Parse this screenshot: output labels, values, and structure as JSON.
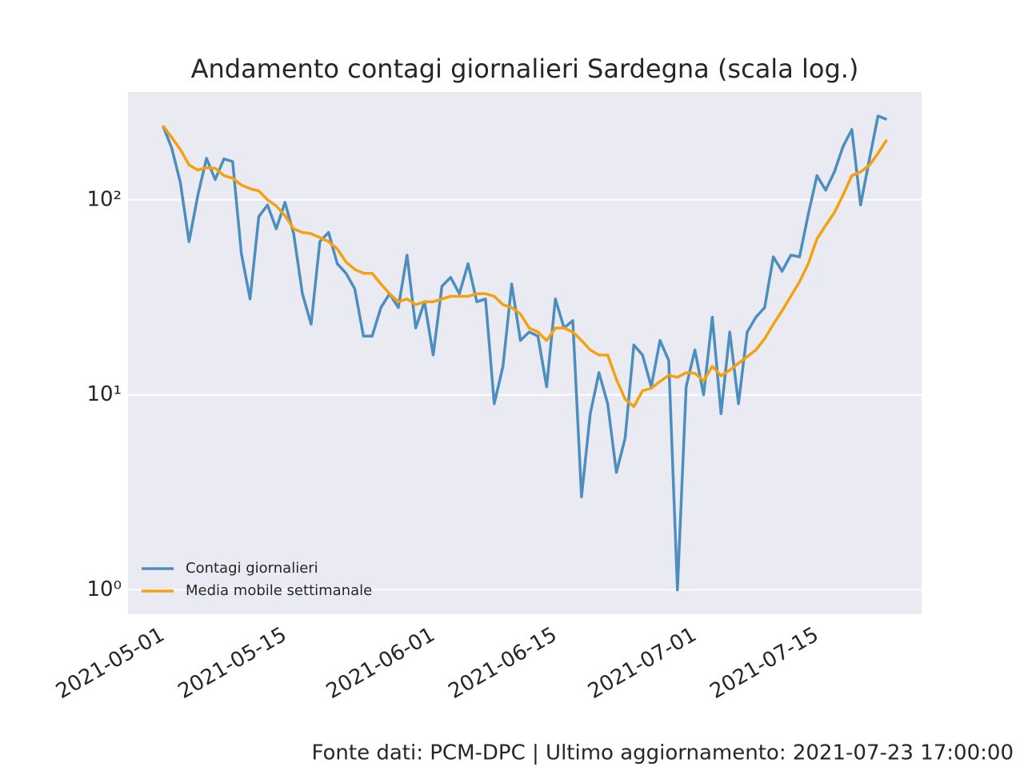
{
  "chart_data": {
    "type": "line",
    "title": "Andamento contagi giornalieri Sardegna (scala log.)",
    "source": "Fonte dati: PCM-DPC | Ultimo aggiornamento: 2021-07-23 17:00:00",
    "x": [
      "2021-05-01",
      "2021-05-02",
      "2021-05-03",
      "2021-05-04",
      "2021-05-05",
      "2021-05-06",
      "2021-05-07",
      "2021-05-08",
      "2021-05-09",
      "2021-05-10",
      "2021-05-11",
      "2021-05-12",
      "2021-05-13",
      "2021-05-14",
      "2021-05-15",
      "2021-05-16",
      "2021-05-17",
      "2021-05-18",
      "2021-05-19",
      "2021-05-20",
      "2021-05-21",
      "2021-05-22",
      "2021-05-23",
      "2021-05-24",
      "2021-05-25",
      "2021-05-26",
      "2021-05-27",
      "2021-05-28",
      "2021-05-29",
      "2021-05-30",
      "2021-05-31",
      "2021-06-01",
      "2021-06-02",
      "2021-06-03",
      "2021-06-04",
      "2021-06-05",
      "2021-06-06",
      "2021-06-07",
      "2021-06-08",
      "2021-06-09",
      "2021-06-10",
      "2021-06-11",
      "2021-06-12",
      "2021-06-13",
      "2021-06-14",
      "2021-06-15",
      "2021-06-16",
      "2021-06-17",
      "2021-06-18",
      "2021-06-19",
      "2021-06-20",
      "2021-06-21",
      "2021-06-22",
      "2021-06-23",
      "2021-06-24",
      "2021-06-25",
      "2021-06-26",
      "2021-06-27",
      "2021-06-28",
      "2021-06-29",
      "2021-06-30",
      "2021-07-01",
      "2021-07-02",
      "2021-07-03",
      "2021-07-04",
      "2021-07-05",
      "2021-07-06",
      "2021-07-07",
      "2021-07-08",
      "2021-07-09",
      "2021-07-10",
      "2021-07-11",
      "2021-07-12",
      "2021-07-13",
      "2021-07-14",
      "2021-07-15",
      "2021-07-16",
      "2021-07-17",
      "2021-07-18",
      "2021-07-19",
      "2021-07-20",
      "2021-07-21",
      "2021-07-22",
      "2021-07-23"
    ],
    "series": [
      {
        "name": "Contagi giornalieri",
        "color": "#4c8fbf",
        "values": [
          240,
          185,
          123,
          61,
          105,
          163,
          127,
          162,
          157,
          53,
          31,
          82,
          94,
          71,
          97,
          67,
          33,
          23,
          61,
          68,
          47,
          42,
          35,
          20,
          20,
          28,
          33,
          28,
          52,
          22,
          30,
          16,
          36,
          40,
          33,
          47,
          30,
          31,
          9,
          14,
          37,
          19,
          21,
          20,
          11,
          31,
          22,
          24,
          3,
          8,
          13,
          9,
          4,
          6,
          18,
          16,
          11,
          19,
          15,
          1,
          11,
          17,
          10,
          25,
          8,
          21,
          9,
          21,
          25,
          28,
          51,
          43,
          52,
          51,
          84,
          133,
          112,
          139,
          188,
          229,
          94,
          160,
          269,
          258
        ]
      },
      {
        "name": "Media mobile settimanale",
        "color": "#f5a10f",
        "values": [
          240,
          209,
          181,
          151,
          142,
          146,
          145,
          133,
          129,
          119,
          114,
          111,
          100,
          93,
          83,
          71,
          68,
          67,
          64,
          61,
          56,
          48,
          44,
          42,
          42,
          37,
          33,
          30,
          31,
          29,
          30,
          30,
          31,
          32,
          32,
          32,
          33,
          33,
          32,
          29,
          28,
          26,
          22,
          21,
          19,
          22,
          22,
          21,
          19,
          17,
          16,
          16,
          12,
          9.5,
          8.7,
          10.5,
          10.8,
          11.7,
          12.6,
          12.3,
          13,
          12.9,
          11.8,
          14,
          12.5,
          13.4,
          14.5,
          15.7,
          17,
          19.4,
          23,
          27,
          32,
          38,
          47,
          63,
          74,
          86,
          106,
          133,
          139,
          150,
          173,
          203
        ]
      }
    ],
    "xlim": [
      "2021-04-27",
      "2021-07-27"
    ],
    "xticks": [
      "2021-05-01",
      "2021-05-15",
      "2021-06-01",
      "2021-06-15",
      "2021-07-01",
      "2021-07-15"
    ],
    "ylim": [
      0.75,
      357
    ],
    "yticks": [
      {
        "value": 1,
        "label": "10⁰"
      },
      {
        "value": 10,
        "label": "10¹"
      },
      {
        "value": 100,
        "label": "10²"
      }
    ],
    "log_y": true,
    "grid": "y",
    "legend": "lower left"
  }
}
